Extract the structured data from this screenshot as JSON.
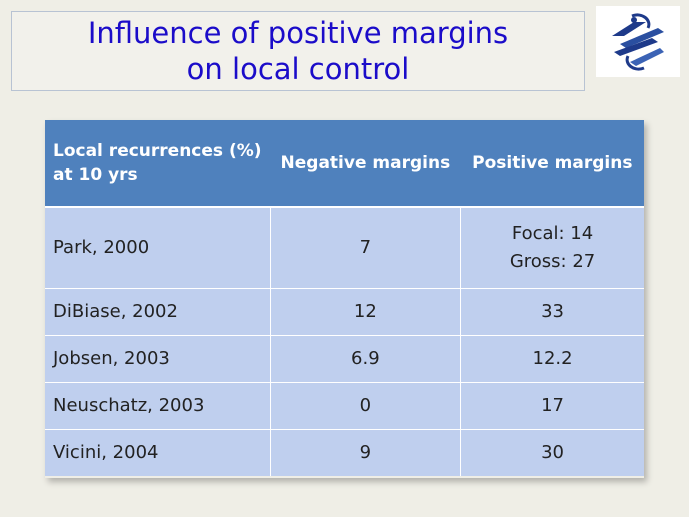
{
  "slide": {
    "title_line1": "Influence of positive margins",
    "title_line2": "on local control",
    "logo_icon": "society-logo-icon"
  },
  "table": {
    "headers": [
      [
        "Local recurrences (%)",
        "at 10 yrs"
      ],
      "Negative margins",
      "Positive margins"
    ],
    "rows": [
      {
        "study": "Park, 2000",
        "negative": "7",
        "positive": [
          "Focal: 14",
          "Gross: 27"
        ]
      },
      {
        "study": "DiBiase, 2002",
        "negative": "12",
        "positive": [
          "33"
        ]
      },
      {
        "study": "Jobsen, 2003",
        "negative": "6.9",
        "positive": [
          "12.2"
        ]
      },
      {
        "study": "Neuschatz, 2003",
        "negative": "0",
        "positive": [
          "17"
        ]
      },
      {
        "study": "Vicini, 2004",
        "negative": "9",
        "positive": [
          "30"
        ]
      }
    ]
  },
  "colors": {
    "title_text": "#1b0cc9",
    "header_bg": "#4f81bd",
    "row_bg": "#bfcfee",
    "background": "#efeee6"
  }
}
